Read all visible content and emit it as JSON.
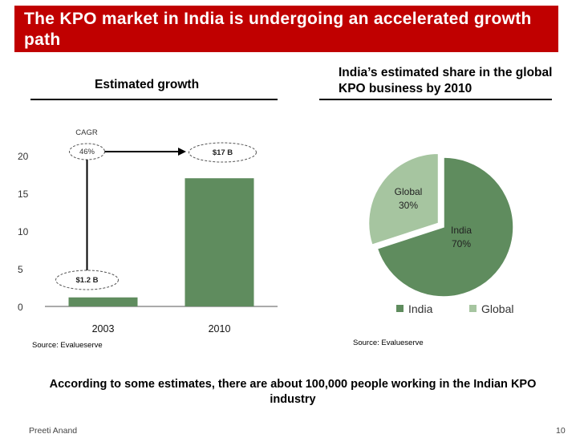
{
  "title": "The KPO market in India is undergoing an accelerated growth path",
  "left_heading": "Estimated growth",
  "right_heading": "India’s estimated share in the global KPO business by 2010",
  "left_source": "Source: Evalueserve",
  "right_source": "Source: Evalueserve",
  "footer_note": "According to some estimates, there are about 100,000 people working in the Indian KPO industry",
  "author": "Preeti Anand",
  "page_number": "10",
  "colors": {
    "title_bg": "#c00000",
    "india": "#5f8c5e",
    "global": "#a6c5a0"
  },
  "chart_data": [
    {
      "type": "bar",
      "title": "Estimated growth",
      "categories": [
        "2003",
        "2010"
      ],
      "values": [
        1.2,
        17
      ],
      "ylim": [
        0,
        20
      ],
      "yticks": [
        0,
        5,
        10,
        15,
        20
      ],
      "annotations": {
        "cagr_label": "CAGR",
        "cagr_value": "46%",
        "start_label": "$1.2 B",
        "end_label": "$17 B"
      }
    },
    {
      "type": "pie",
      "title": "India’s estimated share in the global KPO business by 2010",
      "slices": [
        {
          "name": "India",
          "value": 70,
          "label": "70%"
        },
        {
          "name": "Global",
          "value": 30,
          "label": "30%"
        }
      ],
      "legend": "bottom"
    }
  ]
}
